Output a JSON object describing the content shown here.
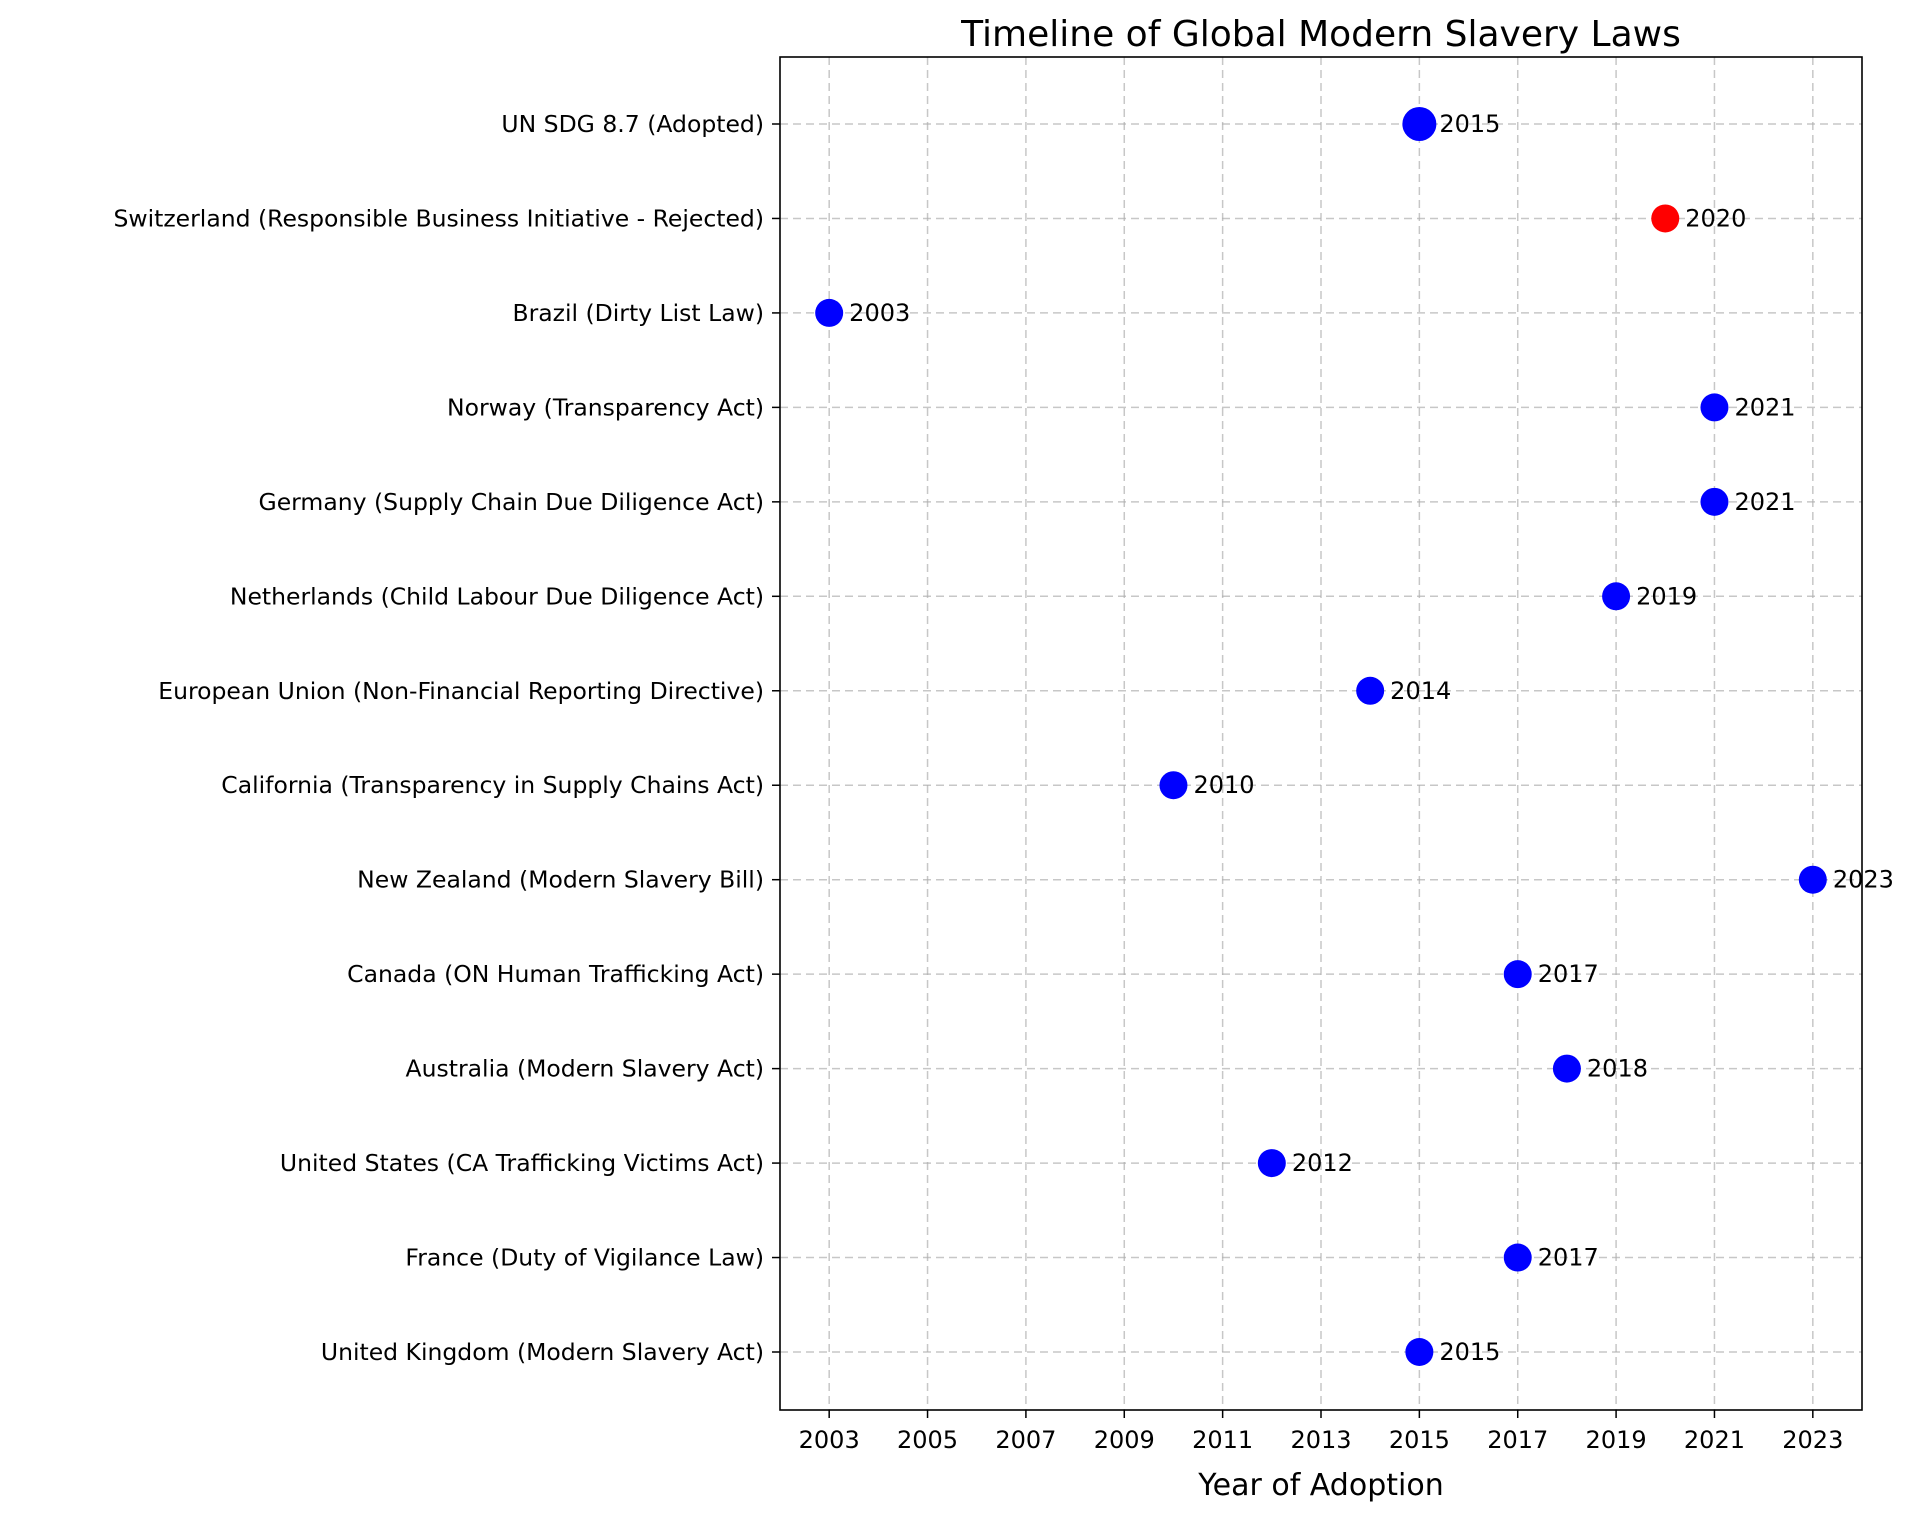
{
  "chart_data": {
    "type": "scatter",
    "title": "Timeline of Global Modern Slavery Laws",
    "xlabel": "Year of Adoption",
    "ylabel": "",
    "xlim": [
      2002,
      2024
    ],
    "xticks": [
      2003,
      2005,
      2007,
      2009,
      2011,
      2013,
      2015,
      2017,
      2019,
      2021,
      2023
    ],
    "grid": true,
    "colors": {
      "default": "#0000ff",
      "highlight": "#ff0000"
    },
    "points": [
      {
        "label": "United Kingdom (Modern Slavery Act)",
        "year": 2015,
        "color": "#0000ff",
        "emphasis": false
      },
      {
        "label": "France (Duty of Vigilance Law)",
        "year": 2017,
        "color": "#0000ff",
        "emphasis": false
      },
      {
        "label": "United States (CA Trafficking Victims Act)",
        "year": 2012,
        "color": "#0000ff",
        "emphasis": false
      },
      {
        "label": "Australia (Modern Slavery Act)",
        "year": 2018,
        "color": "#0000ff",
        "emphasis": false
      },
      {
        "label": "Canada (ON Human Trafficking Act)",
        "year": 2017,
        "color": "#0000ff",
        "emphasis": false
      },
      {
        "label": "New Zealand (Modern Slavery Bill)",
        "year": 2023,
        "color": "#0000ff",
        "emphasis": false
      },
      {
        "label": "California (Transparency in Supply Chains Act)",
        "year": 2010,
        "color": "#0000ff",
        "emphasis": false
      },
      {
        "label": "European Union (Non-Financial Reporting Directive)",
        "year": 2014,
        "color": "#0000ff",
        "emphasis": false
      },
      {
        "label": "Netherlands (Child Labour Due Diligence Act)",
        "year": 2019,
        "color": "#0000ff",
        "emphasis": false
      },
      {
        "label": "Germany (Supply Chain Due Diligence Act)",
        "year": 2021,
        "color": "#0000ff",
        "emphasis": false
      },
      {
        "label": "Norway (Transparency Act)",
        "year": 2021,
        "color": "#0000ff",
        "emphasis": false
      },
      {
        "label": "Brazil (Dirty List Law)",
        "year": 2003,
        "color": "#0000ff",
        "emphasis": false
      },
      {
        "label": "Switzerland (Responsible Business Initiative - Rejected)",
        "year": 2020,
        "color": "#ff0000",
        "emphasis": false
      },
      {
        "label": "UN SDG 8.7 (Adopted)",
        "year": 2015,
        "color": "#0000ff",
        "emphasis": true
      }
    ]
  }
}
